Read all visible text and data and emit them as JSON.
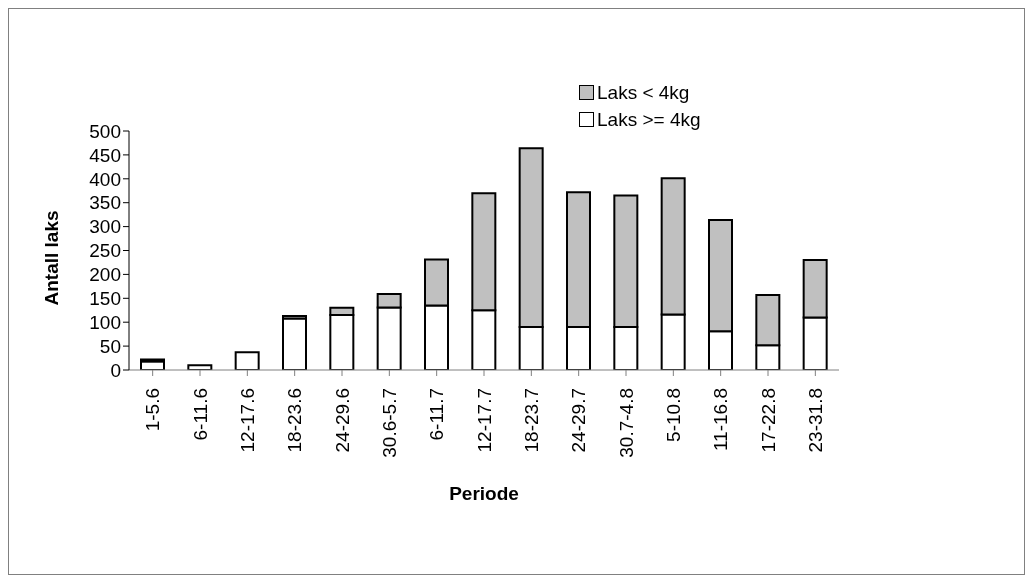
{
  "chart_data": {
    "type": "bar",
    "stacked": true,
    "xlabel": "Periode",
    "ylabel": "Antall laks",
    "categories": [
      "1-5.6",
      "6-11.6",
      "12-17.6",
      "18-23.6",
      "24-29.6",
      "30.6-5.7",
      "6-11.7",
      "12-17.7",
      "18-23.7",
      "24-29.7",
      "30.7-4.8",
      "5-10.8",
      "11-16.8",
      "17-22.8",
      "23-31.8"
    ],
    "series": [
      {
        "name": "Laks >= 4kg",
        "color": "#ffffff",
        "values": [
          18,
          10,
          37,
          108,
          115,
          131,
          135,
          125,
          90,
          90,
          90,
          116,
          81,
          52,
          110
        ]
      },
      {
        "name": "Laks < 4kg",
        "color": "#c0c0c0",
        "values": [
          4,
          0,
          0,
          5,
          15,
          28,
          96,
          245,
          374,
          282,
          275,
          285,
          233,
          105,
          120
        ]
      }
    ],
    "ylim": [
      0,
      500
    ],
    "yticks": [
      0,
      50,
      100,
      150,
      200,
      250,
      300,
      350,
      400,
      450,
      500
    ],
    "grid": false,
    "legend": "top right"
  }
}
